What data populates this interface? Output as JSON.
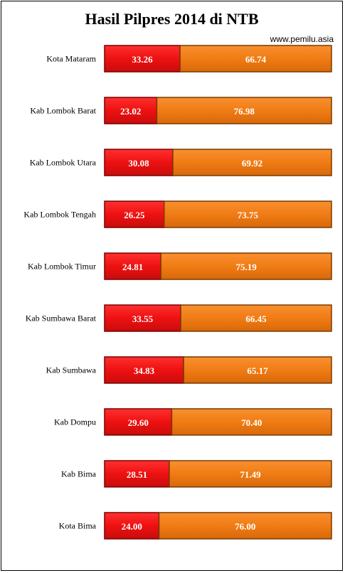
{
  "chart_data": {
    "type": "bar",
    "orientation": "horizontal",
    "stacked": true,
    "title": "Hasil Pilpres 2014 di NTB",
    "source": "www.pemilu.asia",
    "xlim": [
      0,
      100
    ],
    "grid": false,
    "categories": [
      "Kota Mataram",
      "Kab Lombok Barat",
      "Kab Lombok Utara",
      "Kab Lombok Tengah",
      "Kab Lombok Timur",
      "Kab Sumbawa  Barat",
      "Kab Sumbawa",
      "Kab Dompu",
      "Kab Bima",
      "Kota Bima"
    ],
    "series": [
      {
        "color": "#ee1111",
        "values": [
          33.26,
          23.02,
          30.08,
          26.25,
          24.81,
          33.55,
          34.83,
          29.6,
          28.51,
          24.0
        ],
        "labels": [
          "33.26",
          "23.02",
          "30.08",
          "26.25",
          "24.81",
          "33.55",
          "34.83",
          "29.60",
          "28.51",
          "24.00"
        ]
      },
      {
        "color": "#f07c14",
        "values": [
          66.74,
          76.98,
          69.92,
          73.75,
          75.19,
          66.45,
          65.17,
          70.4,
          71.49,
          76.0
        ],
        "labels": [
          "66.74",
          "76.98",
          "69.92",
          "73.75",
          "75.19",
          "66.45",
          "65.17",
          "70.40",
          "71.49",
          "76.00"
        ]
      }
    ]
  }
}
